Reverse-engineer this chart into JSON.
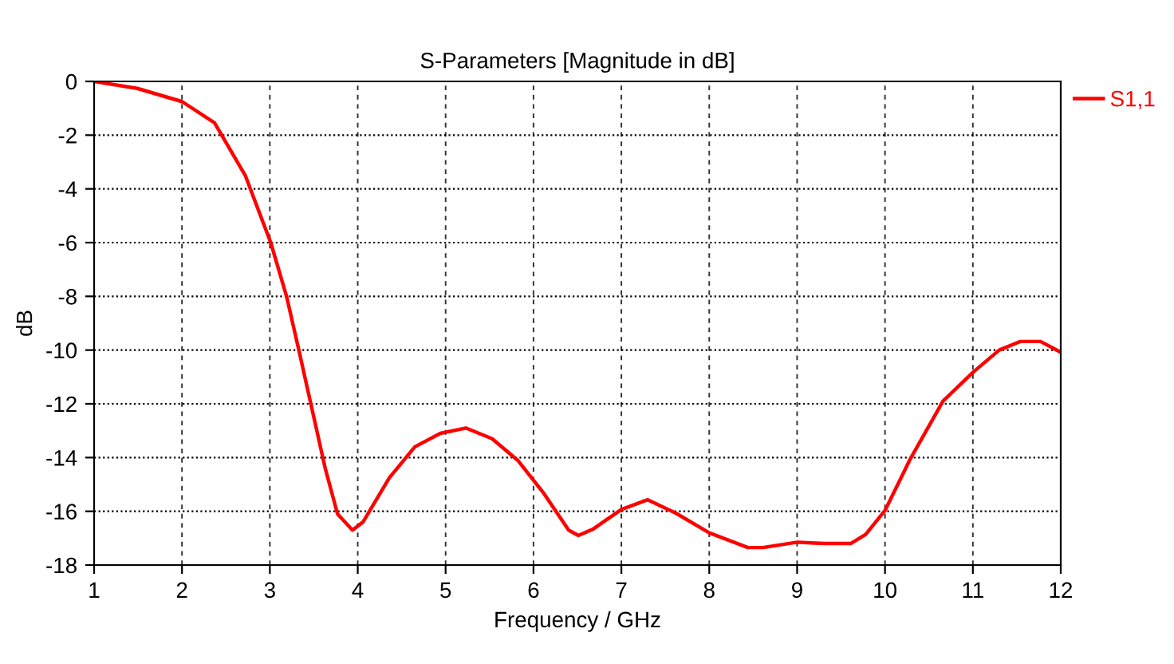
{
  "chart_data": {
    "type": "line",
    "title": "S-Parameters [Magnitude in dB]",
    "xlabel": "Frequency / GHz",
    "ylabel": "dB",
    "xlim": [
      1,
      12
    ],
    "xticks": [
      1,
      2,
      3,
      4,
      5,
      6,
      7,
      8,
      9,
      10,
      11,
      12
    ],
    "ylim": [
      -18,
      0
    ],
    "yticks": [
      0,
      -2,
      -4,
      -6,
      -8,
      -10,
      -12,
      -14,
      -16,
      -18
    ],
    "grid": true,
    "legend": "top right",
    "marker": "none",
    "line_style": "solid",
    "series": [
      {
        "name": "S1,1",
        "color": "#ff0000",
        "x": [
          1,
          1.49,
          2,
          2.37,
          2.72,
          3.01,
          3.19,
          3.33,
          3.48,
          3.63,
          3.77,
          3.94,
          4.06,
          4.36,
          4.65,
          4.94,
          5.23,
          5.53,
          5.82,
          6.11,
          6.4,
          6.51,
          6.68,
          7.0,
          7.3,
          7.62,
          8.0,
          8.44,
          8.61,
          9.0,
          9.32,
          9.61,
          9.78,
          10.0,
          10.28,
          10.66,
          11.0,
          11.3,
          11.54,
          11.77,
          12.0
        ],
        "values": [
          0,
          -0.26,
          -0.75,
          -1.54,
          -3.5,
          -6.0,
          -8.0,
          -10.0,
          -12.2,
          -14.4,
          -16.1,
          -16.7,
          -16.4,
          -14.75,
          -13.6,
          -13.1,
          -12.9,
          -13.3,
          -14.1,
          -15.3,
          -16.7,
          -16.9,
          -16.66,
          -15.93,
          -15.57,
          -16.07,
          -16.8,
          -17.35,
          -17.35,
          -17.15,
          -17.2,
          -17.2,
          -16.86,
          -15.97,
          -14.1,
          -11.9,
          -10.83,
          -10.0,
          -9.68,
          -9.68,
          -10.08
        ]
      }
    ]
  }
}
